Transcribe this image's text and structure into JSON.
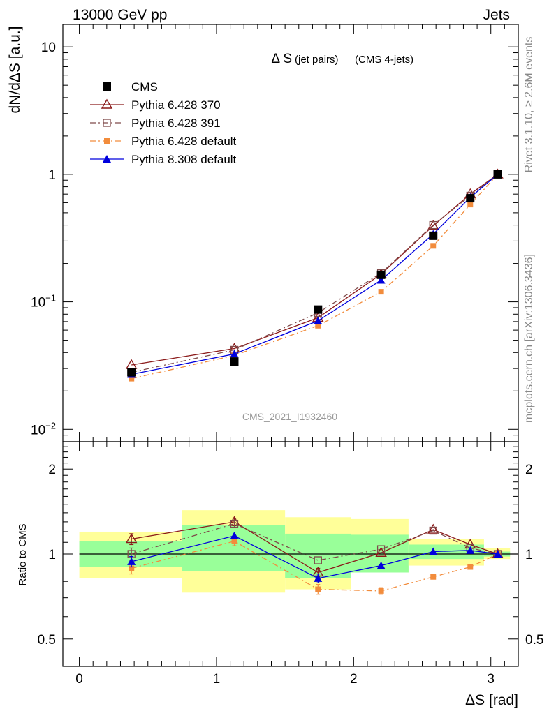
{
  "header": {
    "energy_label": "13000 GeV pp",
    "process_label": "Jets"
  },
  "side_labels": {
    "rivet": "Rivet 3.1.10, ≥ 2.6M events",
    "mcplots": "mcplots.cern.ch [arXiv:1306.3436]"
  },
  "chart_data": [
    {
      "type": "line",
      "panel": "main",
      "title_main": "Δ S",
      "title_small": "(jet pairs)",
      "title_suffix": "(CMS 4-jets)",
      "ylabel": "dN/dΔS [a.u.]",
      "yscale": "log",
      "ylim": [
        0.008,
        15
      ],
      "yticks": [
        {
          "value": 0.01,
          "base": "10",
          "exp": "−2"
        },
        {
          "value": 0.1,
          "base": "10",
          "exp": "−1"
        },
        {
          "value": 1,
          "base": "1",
          "exp": ""
        },
        {
          "value": 10,
          "base": "10",
          "exp": ""
        }
      ],
      "xlim": [
        -0.12,
        3.2
      ],
      "watermark": "CMS_2021_I1932460",
      "legend_position": "top-left",
      "series": [
        {
          "name": "CMS",
          "color": "#000000",
          "marker": "square-filled",
          "line": "none",
          "x": [
            0.38,
            1.13,
            1.74,
            2.2,
            2.58,
            2.85,
            3.05
          ],
          "y": [
            0.028,
            0.034,
            0.087,
            0.163,
            0.33,
            0.65,
            1.0
          ]
        },
        {
          "name": "Pythia 6.428 370",
          "color": "#8b1a1a",
          "marker": "triangle-open",
          "line": "solid",
          "x": [
            0.38,
            1.13,
            1.74,
            2.2,
            2.58,
            2.85,
            3.05
          ],
          "y": [
            0.032,
            0.043,
            0.075,
            0.165,
            0.395,
            0.7,
            1.0
          ]
        },
        {
          "name": "Pythia 6.428 391",
          "color": "#7f4a4a",
          "marker": "square-open",
          "line": "dashdot",
          "x": [
            0.38,
            1.13,
            1.74,
            2.2,
            2.58,
            2.85,
            3.05
          ],
          "y": [
            0.028,
            0.042,
            0.082,
            0.168,
            0.4,
            0.68,
            1.0
          ]
        },
        {
          "name": "Pythia 6.428 default",
          "color": "#f28c3c",
          "marker": "square-small",
          "line": "dashdot",
          "x": [
            0.38,
            1.13,
            1.74,
            2.2,
            2.58,
            2.85,
            3.05
          ],
          "y": [
            0.025,
            0.038,
            0.065,
            0.12,
            0.275,
            0.58,
            1.0
          ]
        },
        {
          "name": "Pythia 8.308 default",
          "color": "#0000dd",
          "marker": "triangle-filled",
          "line": "solid",
          "x": [
            0.38,
            1.13,
            1.74,
            2.2,
            2.58,
            2.85,
            3.05
          ],
          "y": [
            0.027,
            0.039,
            0.071,
            0.148,
            0.34,
            0.66,
            1.0
          ]
        }
      ]
    },
    {
      "type": "line",
      "panel": "ratio",
      "ylabel": "Ratio to CMS",
      "xlabel": "ΔS [rad]",
      "yscale": "log",
      "ylim": [
        0.4,
        2.5
      ],
      "yticks": [
        0.5,
        1,
        2
      ],
      "ytick_labels": [
        "0.5",
        "1",
        "2"
      ],
      "xlim": [
        -0.12,
        3.2
      ],
      "xticks": [
        0,
        1,
        2,
        3
      ],
      "xtick_labels": [
        "0",
        "1",
        "2",
        "3"
      ],
      "reference_line": 1,
      "bands": [
        {
          "x0": 0.0,
          "x1": 0.75,
          "inner": [
            0.9,
            1.11
          ],
          "outer": [
            0.82,
            1.2
          ]
        },
        {
          "x0": 0.75,
          "x1": 1.5,
          "inner": [
            0.87,
            1.27
          ],
          "outer": [
            0.73,
            1.43
          ]
        },
        {
          "x0": 1.5,
          "x1": 1.98,
          "inner": [
            0.82,
            1.18
          ],
          "outer": [
            0.75,
            1.35
          ]
        },
        {
          "x0": 1.98,
          "x1": 2.4,
          "inner": [
            0.86,
            1.17
          ],
          "outer": [
            0.86,
            1.33
          ]
        },
        {
          "x0": 2.4,
          "x1": 2.95,
          "inner": [
            0.96,
            1.08
          ],
          "outer": [
            0.91,
            1.13
          ]
        },
        {
          "x0": 2.95,
          "x1": 3.14,
          "inner": [
            0.98,
            1.02
          ],
          "outer": [
            0.96,
            1.05
          ]
        }
      ],
      "band_colors": {
        "inner": "#99ff99",
        "outer": "#ffff99"
      },
      "series": [
        {
          "name": "Pythia 6.428 370",
          "color": "#8b1a1a",
          "marker": "triangle-open",
          "line": "solid",
          "x": [
            0.38,
            1.13,
            1.74,
            2.2,
            2.58,
            2.85,
            3.05
          ],
          "y": [
            1.13,
            1.3,
            0.86,
            1.01,
            1.22,
            1.08,
            1.0
          ],
          "err": [
            0.05,
            0.04,
            0.03,
            0.0,
            0.0,
            0.0,
            0.0
          ]
        },
        {
          "name": "Pythia 6.428 391",
          "color": "#7f4a4a",
          "marker": "square-open",
          "line": "dashdot",
          "x": [
            0.38,
            1.13,
            1.74,
            2.2,
            2.58,
            2.85,
            3.05
          ],
          "y": [
            1.0,
            1.28,
            0.95,
            1.04,
            1.21,
            1.05,
            1.0
          ],
          "err": [
            0.05,
            0.04,
            0.0,
            0.0,
            0.0,
            0.0,
            0.0
          ]
        },
        {
          "name": "Pythia 6.428 default",
          "color": "#f28c3c",
          "marker": "square-small",
          "line": "dashdot",
          "x": [
            0.38,
            1.13,
            1.74,
            2.2,
            2.58,
            2.85,
            3.05
          ],
          "y": [
            0.89,
            1.11,
            0.75,
            0.74,
            0.83,
            0.9,
            1.0
          ],
          "err": [
            0.04,
            0.04,
            0.03,
            0.02,
            0.0,
            0.0,
            0.0
          ]
        },
        {
          "name": "Pythia 8.308 default",
          "color": "#0000dd",
          "marker": "triangle-filled",
          "line": "solid",
          "x": [
            0.38,
            1.13,
            1.74,
            2.2,
            2.58,
            2.85,
            3.05
          ],
          "y": [
            0.94,
            1.16,
            0.82,
            0.91,
            1.02,
            1.03,
            1.0
          ],
          "err": [
            0.04,
            0.0,
            0.03,
            0.0,
            0.0,
            0.0,
            0.0
          ]
        }
      ]
    }
  ]
}
